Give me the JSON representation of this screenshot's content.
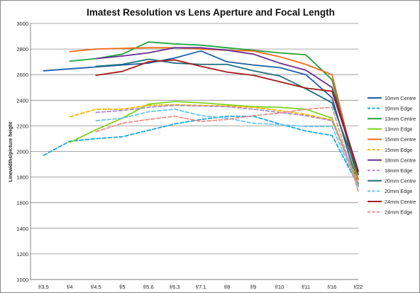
{
  "chart_data": {
    "type": "line",
    "title": "Imatest Resolution vs Lens Aperture and Focal Length",
    "xlabel": "",
    "ylabel": "Linewidths/picture height",
    "categories": [
      "f/3.5",
      "f/4",
      "f/4.5",
      "f/5",
      "f/5.6",
      "f/6.3",
      "f/7.1",
      "f/8",
      "f/9",
      "f/10",
      "f/11",
      "f/16",
      "f/22"
    ],
    "ylim": [
      1000,
      3000
    ],
    "yticks": [
      1000,
      1200,
      1400,
      1600,
      1800,
      2000,
      2200,
      2400,
      2600,
      2800,
      3000
    ],
    "ytick_labels": [
      "1000",
      "1200",
      "1400",
      "1600",
      "1800",
      "2000",
      "2200",
      "2400",
      "2600",
      "2800",
      "3000"
    ],
    "grid": "horizontal",
    "legend_position": "right",
    "series": [
      {
        "name": "10mm Centre",
        "color": "#1f5fa8",
        "dashed": false,
        "values": [
          2630,
          2645,
          2660,
          2675,
          2690,
          2730,
          2785,
          2700,
          2675,
          2655,
          2600,
          2420,
          1730
        ]
      },
      {
        "name": "10mm Edge",
        "color": "#1ea7e0",
        "dashed": true,
        "values": [
          1970,
          2080,
          2100,
          2115,
          2165,
          2215,
          2250,
          2275,
          2275,
          2215,
          2160,
          2125,
          1730
        ]
      },
      {
        "name": "13mm Centre",
        "color": "#1fa33a",
        "dashed": false,
        "values": [
          null,
          2705,
          2725,
          2760,
          2855,
          2840,
          2830,
          2810,
          2790,
          2770,
          2755,
          2560,
          1750
        ]
      },
      {
        "name": "13mm Edge",
        "color": "#7ed321",
        "dashed": false,
        "values": [
          null,
          2070,
          2170,
          2260,
          2370,
          2390,
          2380,
          2365,
          2350,
          2345,
          2330,
          2260,
          1730
        ]
      },
      {
        "name": "15mm Centre",
        "color": "#f26a1b",
        "dashed": false,
        "values": [
          null,
          2780,
          2800,
          2805,
          2810,
          2810,
          2800,
          2790,
          2785,
          2740,
          2680,
          2600,
          1780
        ]
      },
      {
        "name": "15mm Edge",
        "color": "#f5b800",
        "dashed": true,
        "values": [
          null,
          2270,
          2330,
          2330,
          2360,
          2365,
          2360,
          2355,
          2345,
          2320,
          2290,
          2245,
          1760
        ]
      },
      {
        "name": "18mm Centre",
        "color": "#6a2c91",
        "dashed": false,
        "values": [
          null,
          null,
          2725,
          2745,
          2770,
          2810,
          2810,
          2790,
          2760,
          2690,
          2635,
          2500,
          1850
        ]
      },
      {
        "name": "18mm Edge",
        "color": "#b38bc9",
        "dashed": true,
        "values": [
          null,
          null,
          2305,
          2320,
          2345,
          2360,
          2355,
          2350,
          2330,
          2305,
          2280,
          2240,
          1740
        ]
      },
      {
        "name": "20mm Centre",
        "color": "#1a6e7a",
        "dashed": false,
        "values": [
          null,
          null,
          2665,
          2680,
          2720,
          2690,
          2680,
          2680,
          2630,
          2590,
          2490,
          2380,
          1820
        ]
      },
      {
        "name": "20mm Edge",
        "color": "#69c8e8",
        "dashed": true,
        "values": [
          null,
          null,
          2240,
          2260,
          2310,
          2330,
          2280,
          2260,
          2220,
          2210,
          2195,
          2195,
          1720
        ]
      },
      {
        "name": "24mm Centre",
        "color": "#a31a1a",
        "dashed": false,
        "values": [
          null,
          null,
          2595,
          2625,
          2700,
          2715,
          2665,
          2620,
          2595,
          2545,
          2495,
          2470,
          1840
        ]
      },
      {
        "name": "24mm Edge",
        "color": "#ec8f8f",
        "dashed": true,
        "values": [
          null,
          null,
          2155,
          2220,
          2250,
          2275,
          2235,
          2250,
          2280,
          2300,
          2330,
          2345,
          1690
        ]
      }
    ]
  }
}
